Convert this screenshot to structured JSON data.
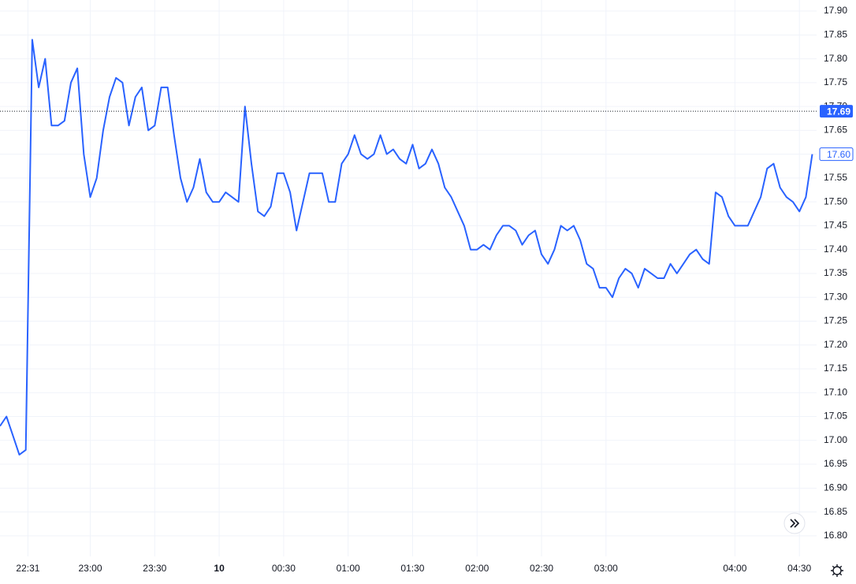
{
  "chart_data": {
    "type": "line",
    "x": [
      "22:18",
      "22:21",
      "22:24",
      "22:27",
      "22:30",
      "22:33",
      "22:36",
      "22:39",
      "22:42",
      "22:45",
      "22:48",
      "22:51",
      "22:54",
      "22:57",
      "23:00",
      "23:03",
      "23:06",
      "23:09",
      "23:12",
      "23:15",
      "23:18",
      "23:21",
      "23:24",
      "23:27",
      "23:30",
      "23:33",
      "23:36",
      "23:39",
      "23:42",
      "23:45",
      "23:48",
      "23:51",
      "23:54",
      "23:57",
      "00:00",
      "00:03",
      "00:06",
      "00:09",
      "00:12",
      "00:15",
      "00:18",
      "00:21",
      "00:24",
      "00:27",
      "00:30",
      "00:33",
      "00:36",
      "00:39",
      "00:42",
      "00:45",
      "00:48",
      "00:51",
      "00:54",
      "00:57",
      "01:00",
      "01:03",
      "01:06",
      "01:09",
      "01:12",
      "01:15",
      "01:18",
      "01:21",
      "01:24",
      "01:27",
      "01:30",
      "01:33",
      "01:36",
      "01:39",
      "01:42",
      "01:45",
      "01:48",
      "01:51",
      "01:54",
      "01:57",
      "02:00",
      "02:03",
      "02:06",
      "02:09",
      "02:12",
      "02:15",
      "02:18",
      "02:21",
      "02:24",
      "02:27",
      "02:30",
      "02:33",
      "02:36",
      "02:39",
      "02:42",
      "02:45",
      "02:48",
      "02:51",
      "02:54",
      "02:57",
      "03:00",
      "03:03",
      "03:06",
      "03:09",
      "03:12",
      "03:15",
      "03:18",
      "03:21",
      "03:24",
      "03:27",
      "03:30",
      "03:33",
      "03:36",
      "03:39",
      "03:42",
      "03:45",
      "03:48",
      "03:51",
      "03:54",
      "03:57",
      "04:00",
      "04:03",
      "04:06",
      "04:09",
      "04:12",
      "04:15",
      "04:18",
      "04:21",
      "04:24",
      "04:27",
      "04:30",
      "04:33",
      "04:36"
    ],
    "series": [
      {
        "color": "#2962ff",
        "values": [
          17.03,
          17.05,
          17.01,
          16.97,
          16.98,
          17.84,
          17.74,
          17.8,
          17.66,
          17.66,
          17.67,
          17.75,
          17.78,
          17.6,
          17.51,
          17.55,
          17.65,
          17.72,
          17.76,
          17.75,
          17.66,
          17.72,
          17.74,
          17.65,
          17.66,
          17.74,
          17.74,
          17.64,
          17.55,
          17.5,
          17.53,
          17.59,
          17.52,
          17.5,
          17.5,
          17.52,
          17.51,
          17.5,
          17.7,
          17.58,
          17.48,
          17.47,
          17.49,
          17.56,
          17.56,
          17.52,
          17.44,
          17.5,
          17.56,
          17.56,
          17.56,
          17.5,
          17.5,
          17.58,
          17.6,
          17.64,
          17.6,
          17.59,
          17.6,
          17.64,
          17.6,
          17.61,
          17.59,
          17.58,
          17.62,
          17.57,
          17.58,
          17.61,
          17.58,
          17.53,
          17.51,
          17.48,
          17.45,
          17.4,
          17.4,
          17.41,
          17.4,
          17.43,
          17.45,
          17.45,
          17.44,
          17.41,
          17.43,
          17.44,
          17.39,
          17.37,
          17.4,
          17.45,
          17.44,
          17.45,
          17.42,
          17.37,
          17.36,
          17.32,
          17.32,
          17.3,
          17.34,
          17.36,
          17.35,
          17.32,
          17.36,
          17.35,
          17.34,
          17.34,
          17.37,
          17.35,
          17.37,
          17.39,
          17.4,
          17.38,
          17.37,
          17.52,
          17.51,
          17.47,
          17.45,
          17.45,
          17.45,
          17.48,
          17.51,
          17.57,
          17.58,
          17.53,
          17.51,
          17.5,
          17.48,
          17.51,
          17.6
        ]
      }
    ],
    "xlim": [
      "22:18",
      "04:38"
    ],
    "xticks": [
      "22:31",
      {
        "value": "23:00",
        "label": "23:00"
      },
      "23:30",
      {
        "value": "00:00",
        "label": "10"
      },
      "00:30",
      "01:00",
      "01:30",
      "02:00",
      "02:30",
      "03:00",
      "04:00",
      "04:30"
    ],
    "ylim": [
      16.77,
      17.91
    ],
    "yticks": [
      {
        "value": 16.8,
        "label": "16.80"
      },
      16.85,
      {
        "value": 16.9,
        "label": "16.90"
      },
      16.95,
      {
        "value": 17,
        "label": "17.00"
      },
      17.05,
      {
        "value": 17.1,
        "label": "17.10"
      },
      17.15,
      {
        "value": 17.2,
        "label": "17.20"
      },
      17.25,
      {
        "value": 17.3,
        "label": "17.30"
      },
      17.35,
      {
        "value": 17.4,
        "label": "17.40"
      },
      17.45,
      {
        "value": 17.5,
        "label": "17.50"
      },
      17.55,
      {
        "value": 17.6,
        "label": "17.60"
      },
      17.65,
      {
        "value": 17.7,
        "label": "17.70"
      },
      17.75,
      {
        "value": 17.8,
        "label": "17.80"
      },
      17.85,
      {
        "value": 17.9,
        "label": "17.90"
      }
    ],
    "reference_line": 17.69,
    "last_label": {
      "value": 17.6,
      "label": "17.60"
    },
    "grid": true
  }
}
